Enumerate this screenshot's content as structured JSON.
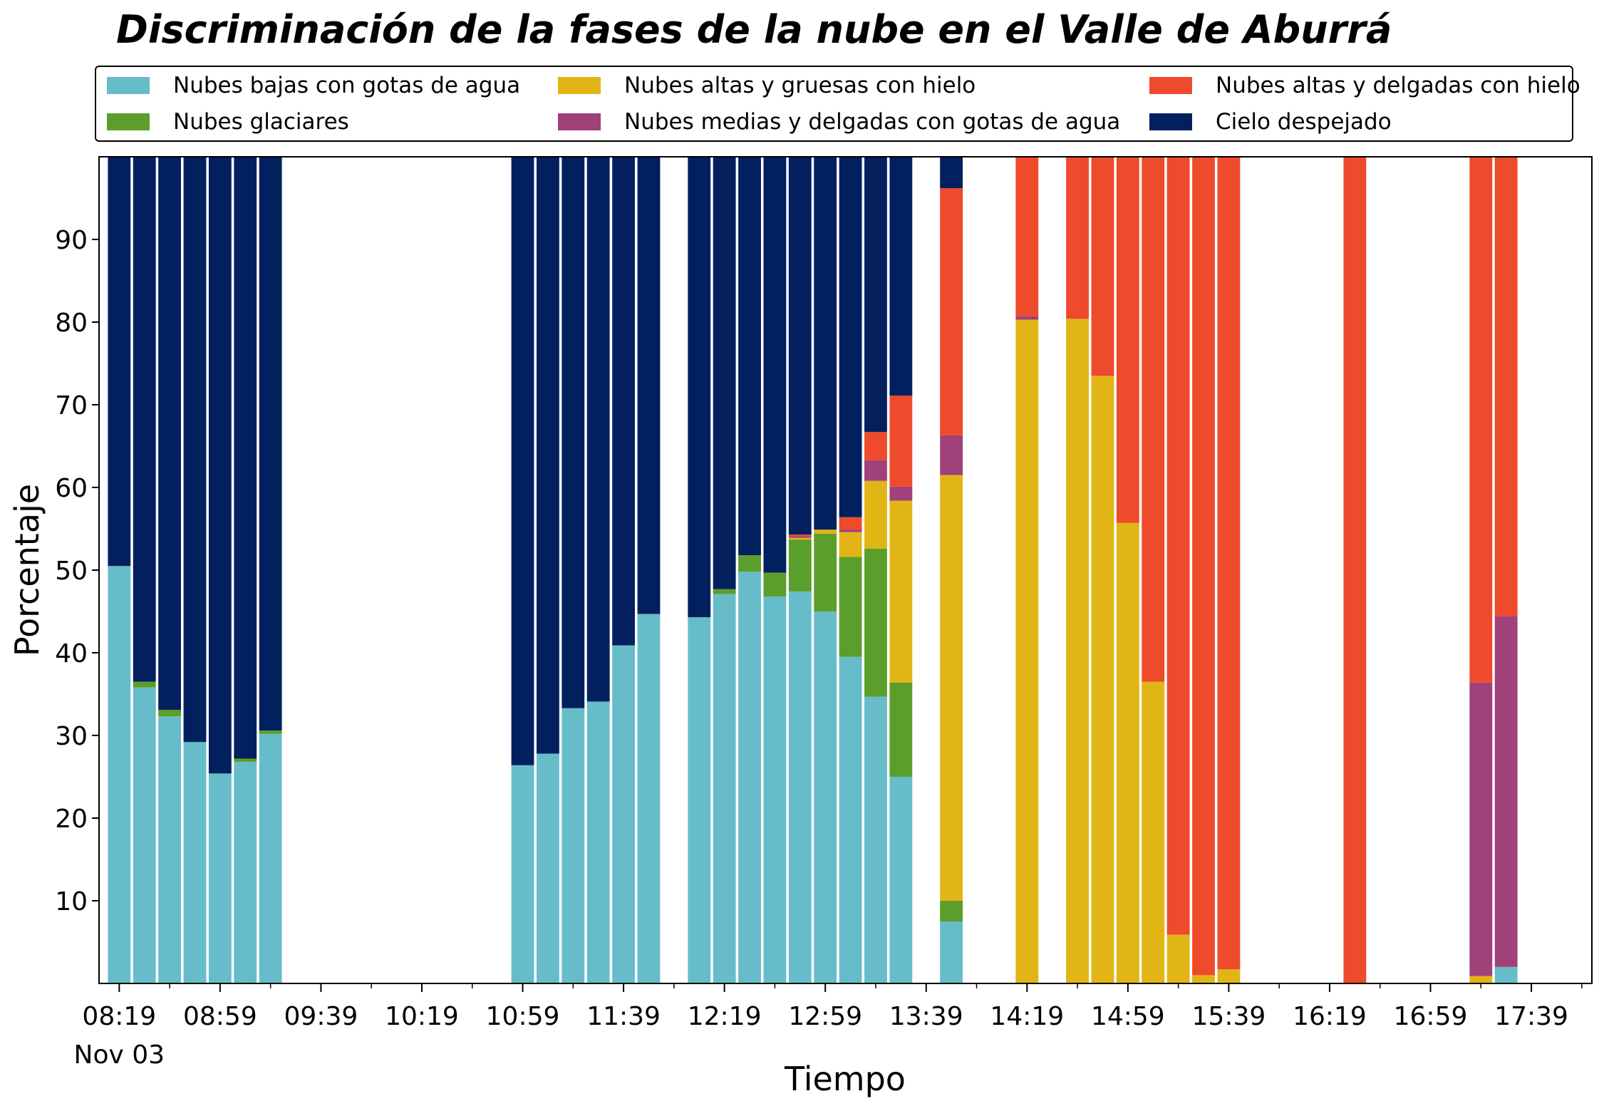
{
  "chart_data": {
    "type": "bar",
    "stacked": true,
    "title": "Discriminación de la fases de la nube en el Valle de Aburrá",
    "xlabel": "Tiempo",
    "ylabel": "Porcentaje",
    "ylim": [
      0,
      100
    ],
    "yticks": [
      10,
      20,
      30,
      40,
      50,
      60,
      70,
      80,
      90
    ],
    "x_range_minutes": [
      491,
      1083
    ],
    "bar_width_minutes": 9,
    "xticks": [
      {
        "minute": 499,
        "label": "08:19",
        "sublabel": "Nov 03"
      },
      {
        "minute": 539,
        "label": "08:59"
      },
      {
        "minute": 579,
        "label": "09:39"
      },
      {
        "minute": 619,
        "label": "10:19"
      },
      {
        "minute": 659,
        "label": "10:59"
      },
      {
        "minute": 699,
        "label": "11:39"
      },
      {
        "minute": 739,
        "label": "12:19"
      },
      {
        "minute": 779,
        "label": "12:59"
      },
      {
        "minute": 819,
        "label": "13:39"
      },
      {
        "minute": 859,
        "label": "14:19"
      },
      {
        "minute": 899,
        "label": "14:59"
      },
      {
        "minute": 939,
        "label": "15:39"
      },
      {
        "minute": 979,
        "label": "16:19"
      },
      {
        "minute": 1019,
        "label": "16:59"
      },
      {
        "minute": 1059,
        "label": "17:39"
      }
    ],
    "minor_xticks": [
      519,
      559,
      599,
      639,
      679,
      719,
      759,
      799,
      839,
      879,
      919,
      959,
      999,
      1039,
      1079
    ],
    "legend_position": "top",
    "series": [
      {
        "name": "Nubes bajas con gotas de agua",
        "color": "#66bdc9"
      },
      {
        "name": "Nubes glaciares",
        "color": "#5c9e2b"
      },
      {
        "name": "Nubes altas y gruesas con hielo",
        "color": "#e1b515"
      },
      {
        "name": "Nubes medias y delgadas con gotas de agua",
        "color": "#a04179"
      },
      {
        "name": "Nubes altas y delgadas con hielo",
        "color": "#ee4a2c"
      },
      {
        "name": "Cielo despejado",
        "color": "#03205e"
      }
    ],
    "x": [
      "08:19",
      "08:29",
      "08:39",
      "08:49",
      "08:59",
      "09:09",
      "09:19",
      "10:59",
      "11:09",
      "11:19",
      "11:29",
      "11:39",
      "11:49",
      "12:09",
      "12:19",
      "12:29",
      "12:39",
      "12:49",
      "12:59",
      "13:09",
      "13:19",
      "13:29",
      "13:49",
      "14:19",
      "14:39",
      "14:49",
      "14:59",
      "15:09",
      "15:19",
      "15:29",
      "15:39",
      "16:29",
      "17:19",
      "17:29"
    ],
    "x_minutes": [
      499,
      509,
      519,
      529,
      539,
      549,
      559,
      659,
      669,
      679,
      689,
      699,
      709,
      729,
      739,
      749,
      759,
      769,
      779,
      789,
      799,
      809,
      829,
      859,
      879,
      889,
      899,
      909,
      919,
      929,
      939,
      989,
      1039,
      1049
    ],
    "stacks": [
      [
        50.5,
        0,
        0,
        0,
        0,
        49.5
      ],
      [
        35.8,
        0.7,
        0,
        0,
        0,
        63.5
      ],
      [
        32.3,
        0.8,
        0,
        0,
        0,
        66.9
      ],
      [
        29.2,
        0,
        0,
        0,
        0,
        70.8
      ],
      [
        25.4,
        0,
        0,
        0,
        0,
        74.6
      ],
      [
        26.8,
        0.4,
        0,
        0,
        0,
        72.8
      ],
      [
        30.2,
        0.4,
        0,
        0,
        0,
        69.4
      ],
      [
        26.4,
        0,
        0,
        0,
        0,
        73.6
      ],
      [
        27.8,
        0,
        0,
        0,
        0,
        72.2
      ],
      [
        33.3,
        0,
        0,
        0,
        0,
        66.7
      ],
      [
        34.1,
        0,
        0,
        0,
        0,
        65.9
      ],
      [
        40.9,
        0,
        0,
        0,
        0,
        59.1
      ],
      [
        44.7,
        0,
        0,
        0,
        0,
        55.3
      ],
      [
        44.3,
        0,
        0,
        0,
        0,
        55.7
      ],
      [
        47.1,
        0.6,
        0,
        0,
        0,
        52.3
      ],
      [
        49.8,
        2.0,
        0,
        0,
        0,
        48.2
      ],
      [
        46.8,
        2.9,
        0,
        0,
        0,
        50.3
      ],
      [
        47.4,
        6.3,
        0.2,
        0.2,
        0.2,
        45.7
      ],
      [
        45.0,
        9.4,
        0.5,
        0,
        0,
        45.1
      ],
      [
        39.5,
        12.1,
        3.0,
        0.3,
        1.5,
        43.6
      ],
      [
        34.7,
        17.9,
        8.2,
        2.5,
        3.4,
        33.3
      ],
      [
        25.0,
        11.4,
        22.0,
        1.7,
        11.0,
        28.9
      ],
      [
        7.5,
        2.5,
        51.5,
        4.8,
        29.9,
        3.8
      ],
      [
        0,
        0,
        80.3,
        0.4,
        19.3,
        0
      ],
      [
        0,
        0,
        80.4,
        0,
        19.6,
        0
      ],
      [
        0,
        0,
        73.5,
        0,
        26.5,
        0
      ],
      [
        0,
        0,
        55.7,
        0,
        44.3,
        0
      ],
      [
        0,
        0,
        36.5,
        0,
        63.5,
        0
      ],
      [
        0,
        0,
        5.9,
        0,
        94.1,
        0
      ],
      [
        0,
        0,
        1.0,
        0,
        99.0,
        0
      ],
      [
        0,
        0,
        1.7,
        0,
        98.3,
        0
      ],
      [
        0,
        0,
        0,
        0,
        100.0,
        0
      ],
      [
        0,
        0,
        0.9,
        35.5,
        63.6,
        0
      ],
      [
        2.0,
        0,
        0,
        42.4,
        55.6,
        0
      ]
    ]
  }
}
